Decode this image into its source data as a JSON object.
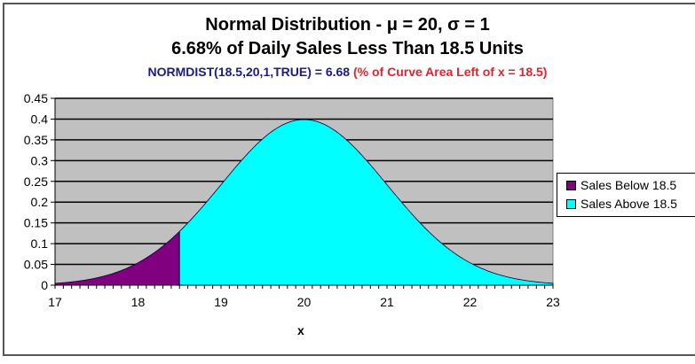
{
  "chart": {
    "title_line1": "Normal Distribution - μ = 20,  σ = 1",
    "title_line2": "6.68% of Daily Sales Less Than 18.5 Units",
    "subtitle_formula": "NORMDIST(18.5,20,1,TRUE) = 6.68",
    "subtitle_note": "  (% of Curve Area Left of x = 18.5)",
    "xlabel": "x",
    "legend": [
      {
        "label": "Sales Below 18.5",
        "color": "#800080"
      },
      {
        "label": "Sales Above 18.5",
        "color": "#00ffff"
      }
    ],
    "colors": {
      "plot_bg": "#c0c0c0",
      "gridline": "#000000",
      "below": "#800080",
      "above": "#00ffff",
      "formula_text": "#1a1a8c",
      "note_text": "#e8212a"
    }
  },
  "chart_data": {
    "type": "area",
    "title": "Normal Distribution - μ = 20,  σ = 1 / 6.68% of Daily Sales Less Than 18.5 Units",
    "subtitle": "NORMDIST(18.5,20,1,TRUE) = 6.68  (% of Curve Area Left of x = 18.5)",
    "xlabel": "x",
    "ylabel": "",
    "mean": 20,
    "sd": 1,
    "cutoff": 18.5,
    "xlim": [
      17,
      23
    ],
    "ylim": [
      0,
      0.45
    ],
    "x_ticks": [
      "17",
      "18",
      "19",
      "20",
      "21",
      "22",
      "23"
    ],
    "y_ticks": [
      "0",
      "0.05",
      "0.1",
      "0.15",
      "0.2",
      "0.25",
      "0.3",
      "0.35",
      "0.4",
      "0.45"
    ],
    "grid": true,
    "legend_position": "right",
    "series": [
      {
        "name": "Sales Below 18.5",
        "x": [
          17.0,
          17.5,
          18.0,
          18.5
        ],
        "values": [
          0.0044,
          0.0175,
          0.054,
          0.1295
        ]
      },
      {
        "name": "Sales Above 18.5",
        "x": [
          18.5,
          19.0,
          19.5,
          20.0,
          20.5,
          21.0,
          21.5,
          22.0,
          22.5,
          23.0
        ],
        "values": [
          0.1295,
          0.242,
          0.3521,
          0.3989,
          0.3521,
          0.242,
          0.1295,
          0.054,
          0.0175,
          0.0044
        ]
      }
    ]
  }
}
